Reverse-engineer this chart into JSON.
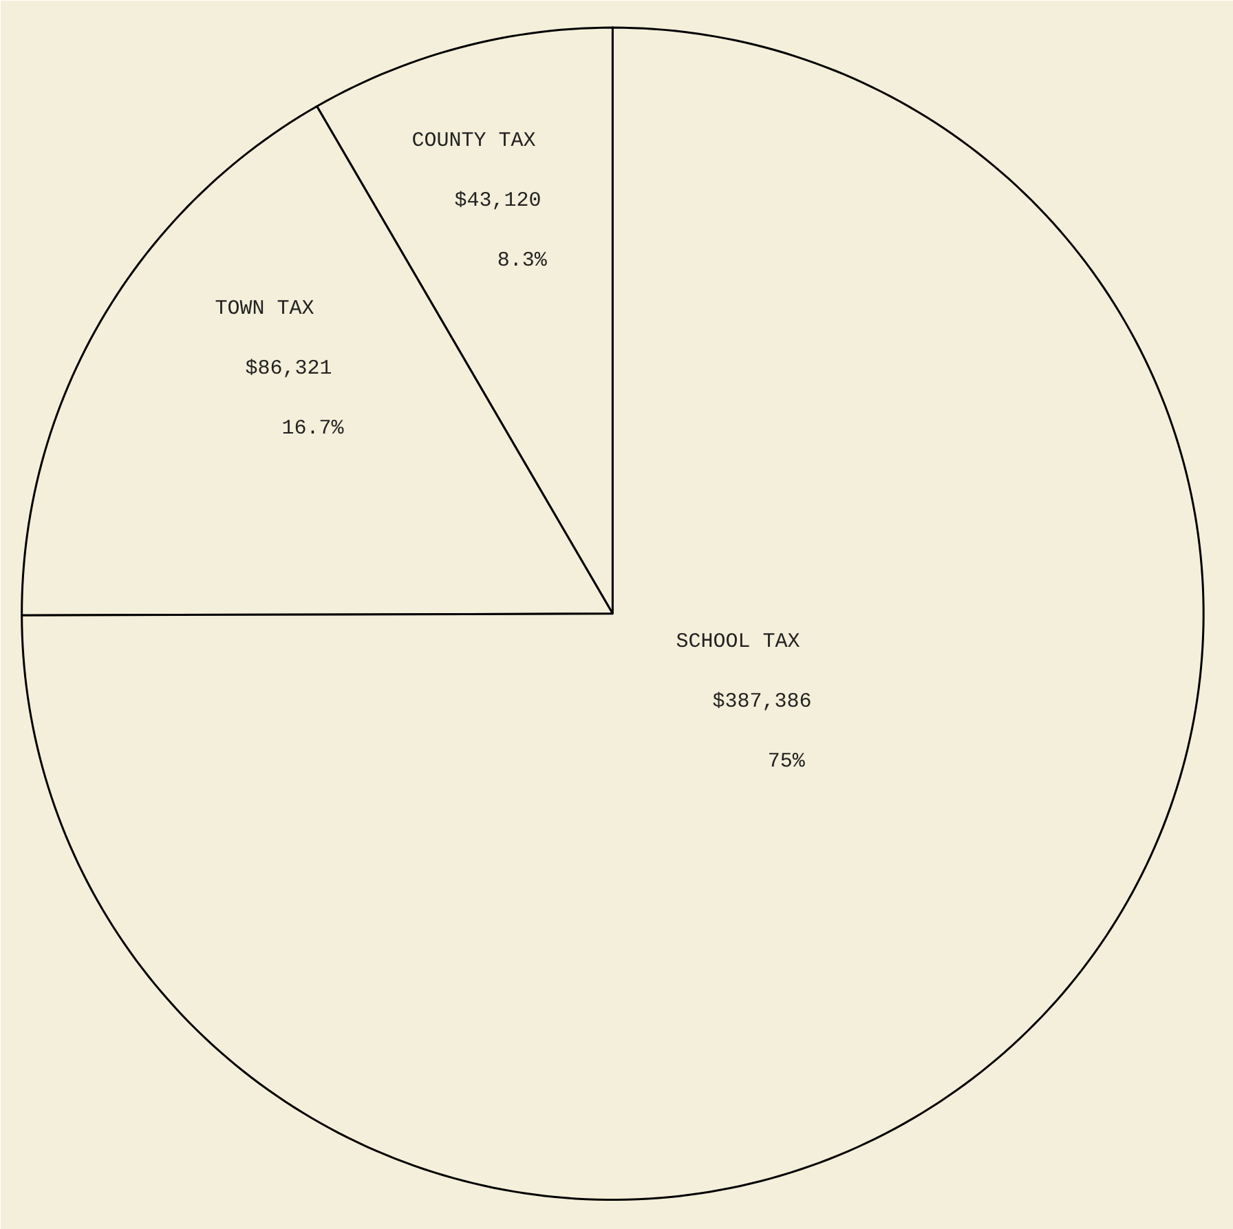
{
  "chart_data": {
    "type": "pie",
    "categories": [
      "COUNTY TAX",
      "TOWN TAX",
      "SCHOOL TAX"
    ],
    "values": [
      43120,
      86321,
      387386
    ],
    "value_labels": [
      "$43,120",
      "$86,321",
      "$387,386"
    ],
    "annotations": [
      "8.3%",
      "16.7%",
      "75%"
    ],
    "colors": [
      "#f4efda",
      "#f4efda",
      "#f4efda"
    ]
  }
}
